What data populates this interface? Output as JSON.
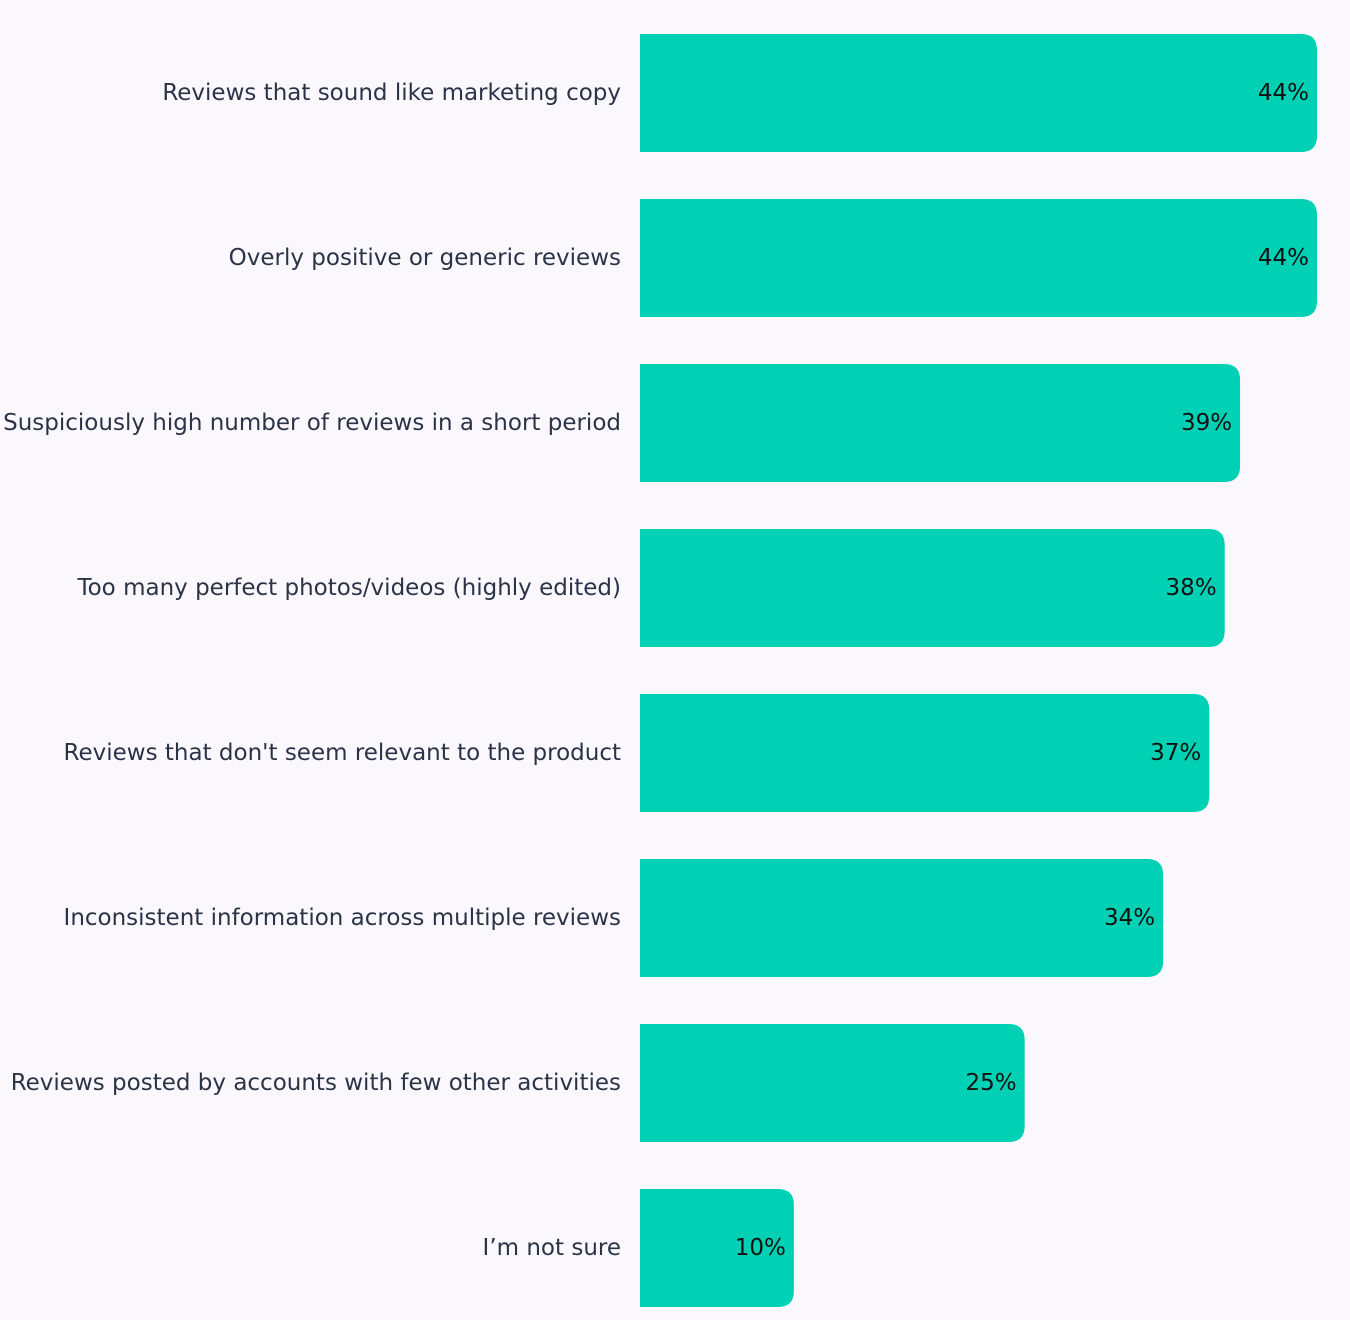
{
  "chart_data": {
    "type": "bar",
    "orientation": "horizontal",
    "categories": [
      "Reviews that sound like marketing copy",
      "Overly positive or generic reviews",
      "Suspiciously high number of reviews in a short period",
      "Too many perfect photos/videos (highly edited)",
      "Reviews that don't seem relevant to the product",
      "Inconsistent information across multiple reviews",
      "Reviews posted by accounts with few other activities",
      "I’m not sure"
    ],
    "values": [
      44,
      44,
      39,
      38,
      37,
      34,
      25,
      10
    ],
    "value_labels": [
      "44%",
      "44%",
      "39%",
      "38%",
      "37%",
      "34%",
      "25%",
      "10%"
    ],
    "unit": "%",
    "xlim": [
      0,
      44
    ],
    "grid": false,
    "legend": "none",
    "bar_color": "#00d0b4"
  }
}
